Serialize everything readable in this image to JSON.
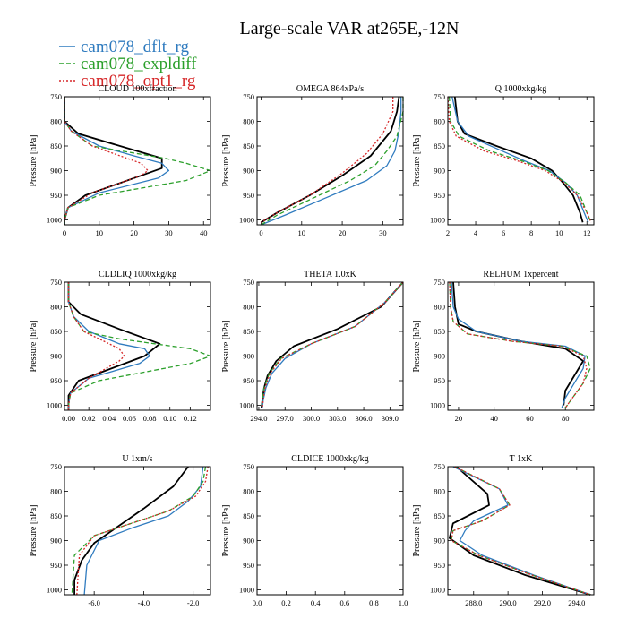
{
  "figure": {
    "title": "Large-scale VAR at265E,-12N",
    "legend": [
      {
        "label": "cam078_dflt_rg",
        "color": "#2f7bbf",
        "dash": "solid"
      },
      {
        "label": "cam078_expldiff",
        "color": "#2ca02c",
        "dash": "dashed"
      },
      {
        "label": "cam078_opt1_rg",
        "color": "#d62728",
        "dash": "dotted"
      }
    ],
    "obs_color": "#000000"
  },
  "chart_data": [
    {
      "type": "line",
      "title": "CLOUD  100xfraction",
      "ylabel": "Pressure [hPa]",
      "xlim": [
        0,
        42
      ],
      "ylim": [
        1010,
        750
      ],
      "xticks": [
        0,
        10,
        20,
        30,
        40
      ],
      "yticks": [
        750,
        800,
        850,
        900,
        950,
        1000
      ],
      "decimals": 0,
      "series": [
        {
          "name": "obs",
          "x": [
            0,
            0,
            4,
            28,
            28,
            6,
            1,
            0,
            0
          ],
          "y": [
            750,
            800,
            825,
            875,
            895,
            950,
            975,
            1000,
            1010
          ]
        },
        {
          "name": "cam078_dflt_rg",
          "x": [
            0,
            0,
            2,
            10,
            20,
            28,
            30,
            27,
            10,
            1,
            0,
            0
          ],
          "y": [
            750,
            800,
            820,
            850,
            870,
            885,
            900,
            915,
            945,
            975,
            1000,
            1010
          ]
        },
        {
          "name": "cam078_expldiff",
          "x": [
            0,
            0,
            2,
            8,
            29,
            35,
            42,
            35,
            10,
            1,
            0,
            0
          ],
          "y": [
            750,
            800,
            820,
            850,
            875,
            885,
            900,
            920,
            950,
            975,
            1000,
            1010
          ]
        },
        {
          "name": "cam078_opt1_rg",
          "x": [
            0,
            0,
            2,
            8,
            16,
            22,
            24,
            22,
            8,
            1,
            0,
            0
          ],
          "y": [
            750,
            800,
            820,
            850,
            870,
            885,
            900,
            910,
            945,
            975,
            1000,
            1010
          ]
        }
      ]
    },
    {
      "type": "line",
      "title": "OMEGA  864xPa/s",
      "ylabel": "Pressure [hPa]",
      "xlim": [
        -1,
        35
      ],
      "ylim": [
        1010,
        750
      ],
      "xticks": [
        0,
        10,
        20,
        30
      ],
      "yticks": [
        750,
        800,
        850,
        900,
        950,
        1000
      ],
      "decimals": 0,
      "series": [
        {
          "name": "obs",
          "x": [
            34,
            33.5,
            32,
            27,
            20,
            12,
            4,
            0
          ],
          "y": [
            750,
            780,
            820,
            870,
            910,
            950,
            985,
            1005
          ]
        },
        {
          "name": "cam078_dflt_rg",
          "x": [
            34.5,
            34.5,
            34,
            33,
            31,
            26,
            16,
            6,
            0
          ],
          "y": [
            750,
            780,
            820,
            860,
            890,
            920,
            955,
            990,
            1010
          ]
        },
        {
          "name": "cam078_expldiff",
          "x": [
            35,
            35,
            33.5,
            31,
            28,
            22,
            13,
            4,
            0
          ],
          "y": [
            750,
            780,
            830,
            860,
            890,
            920,
            955,
            990,
            1010
          ]
        },
        {
          "name": "cam078_opt1_rg",
          "x": [
            32.5,
            32.5,
            30,
            26,
            20,
            12,
            4,
            0
          ],
          "y": [
            750,
            780,
            825,
            865,
            905,
            950,
            985,
            1005
          ]
        }
      ]
    },
    {
      "type": "line",
      "title": "Q  1000xkg/kg",
      "ylabel": "Pressure [hPa]",
      "xlim": [
        2,
        12.5
      ],
      "ylim": [
        1010,
        750
      ],
      "xticks": [
        2,
        4,
        6,
        8,
        10,
        12
      ],
      "yticks": [
        750,
        800,
        850,
        900,
        950,
        1000
      ],
      "decimals": 0,
      "series": [
        {
          "name": "obs",
          "x": [
            2.5,
            2.7,
            3.2,
            5.5,
            8,
            9.5,
            10.3,
            11,
            11.5,
            11.7
          ],
          "y": [
            750,
            800,
            825,
            850,
            875,
            900,
            925,
            950,
            985,
            1005
          ]
        },
        {
          "name": "cam078_dflt_rg",
          "x": [
            2.3,
            2.7,
            3.5,
            5.5,
            7.5,
            9.3,
            10.5,
            11.3,
            11.8,
            12.1
          ],
          "y": [
            750,
            800,
            830,
            855,
            880,
            900,
            925,
            950,
            985,
            1005
          ]
        },
        {
          "name": "cam078_expldiff",
          "x": [
            2.1,
            2.2,
            2.8,
            5,
            7.3,
            9.2,
            10.5,
            11.5,
            12,
            12.3
          ],
          "y": [
            750,
            800,
            830,
            860,
            880,
            900,
            925,
            950,
            985,
            1005
          ]
        },
        {
          "name": "cam078_opt1_rg",
          "x": [
            2,
            2.1,
            2.6,
            4.6,
            7,
            9,
            10.4,
            11.3,
            12,
            12.3
          ],
          "y": [
            750,
            800,
            830,
            860,
            880,
            900,
            925,
            950,
            985,
            1005
          ]
        }
      ]
    },
    {
      "type": "line",
      "title": "CLDLIQ  1000xkg/kg",
      "ylabel": "Pressure [hPa]",
      "xlim": [
        -0.004,
        0.14
      ],
      "ylim": [
        1010,
        750
      ],
      "xticks": [
        0.0,
        0.02,
        0.04,
        0.06,
        0.08,
        0.1,
        0.12
      ],
      "yticks": [
        750,
        800,
        850,
        900,
        950,
        1000
      ],
      "decimals": 2,
      "series": [
        {
          "name": "obs",
          "x": [
            0,
            0,
            0.012,
            0.05,
            0.09,
            0.075,
            0.01,
            0,
            0
          ],
          "y": [
            750,
            790,
            815,
            845,
            875,
            900,
            950,
            980,
            1010
          ]
        },
        {
          "name": "cam078_dflt_rg",
          "x": [
            0,
            0,
            0.005,
            0.02,
            0.05,
            0.075,
            0.08,
            0.07,
            0.02,
            0.002,
            0,
            0
          ],
          "y": [
            750,
            790,
            820,
            850,
            875,
            885,
            900,
            915,
            945,
            975,
            1000,
            1010
          ]
        },
        {
          "name": "cam078_expldiff",
          "x": [
            0,
            0,
            0.005,
            0.015,
            0.05,
            0.12,
            0.14,
            0.12,
            0.03,
            0.002,
            0,
            0
          ],
          "y": [
            750,
            790,
            820,
            850,
            865,
            885,
            900,
            915,
            950,
            975,
            1000,
            1010
          ]
        },
        {
          "name": "cam078_opt1_rg",
          "x": [
            0,
            0,
            0.005,
            0.015,
            0.04,
            0.05,
            0.055,
            0.05,
            0.02,
            0.002,
            0,
            0
          ],
          "y": [
            750,
            790,
            820,
            850,
            875,
            885,
            900,
            910,
            945,
            975,
            1000,
            1010
          ]
        }
      ]
    },
    {
      "type": "line",
      "title": "THETA  1.0xK",
      "ylabel": "Pressure [hPa]",
      "xlim": [
        293.8,
        310.5
      ],
      "ylim": [
        1010,
        750
      ],
      "xticks": [
        294.0,
        297.0,
        300.0,
        303.0,
        306.0,
        309.0
      ],
      "yticks": [
        750,
        800,
        850,
        900,
        950,
        1000
      ],
      "decimals": 1,
      "series": [
        {
          "name": "obs",
          "x": [
            310.5,
            308,
            303,
            298,
            296,
            295,
            294.6,
            294.4,
            294.3
          ],
          "y": [
            750,
            800,
            845,
            880,
            910,
            940,
            965,
            990,
            1005
          ]
        },
        {
          "name": "cam078_dflt_rg",
          "x": [
            310.5,
            308.5,
            305,
            300,
            297,
            295.5,
            294.8,
            294.5,
            294.4
          ],
          "y": [
            750,
            790,
            840,
            875,
            905,
            935,
            965,
            990,
            1005
          ]
        },
        {
          "name": "cam078_expldiff",
          "x": [
            310.5,
            308.5,
            305,
            300,
            296.5,
            295.2,
            294.6,
            294.4,
            294.3
          ],
          "y": [
            750,
            790,
            840,
            875,
            905,
            935,
            965,
            990,
            1005
          ]
        },
        {
          "name": "cam078_opt1_rg",
          "x": [
            310.5,
            308.5,
            305,
            300,
            296.6,
            295.3,
            294.7,
            294.5,
            294.4
          ],
          "y": [
            750,
            790,
            840,
            875,
            905,
            935,
            965,
            990,
            1005
          ]
        }
      ]
    },
    {
      "type": "line",
      "title": "RELHUM  1xpercent",
      "ylabel": "Pressure [hPa]",
      "xlim": [
        14,
        96
      ],
      "ylim": [
        1010,
        750
      ],
      "xticks": [
        20,
        40,
        60,
        80
      ],
      "yticks": [
        750,
        800,
        850,
        900,
        950,
        1000
      ],
      "decimals": 0,
      "series": [
        {
          "name": "obs",
          "x": [
            17,
            18,
            20,
            30,
            55,
            80,
            90,
            85,
            80,
            79
          ],
          "y": [
            750,
            800,
            835,
            850,
            870,
            885,
            910,
            940,
            970,
            1000
          ]
        },
        {
          "name": "cam078_dflt_rg",
          "x": [
            16,
            17,
            20,
            30,
            55,
            80,
            91,
            90,
            85,
            80,
            78
          ],
          "y": [
            750,
            800,
            825,
            850,
            870,
            880,
            900,
            925,
            955,
            985,
            1005
          ]
        },
        {
          "name": "cam078_expldiff",
          "x": [
            15,
            15.5,
            17,
            25,
            50,
            78,
            92,
            94,
            90,
            84,
            80
          ],
          "y": [
            750,
            800,
            830,
            855,
            870,
            880,
            900,
            925,
            955,
            985,
            1005
          ]
        },
        {
          "name": "cam078_opt1_rg",
          "x": [
            15,
            15.5,
            17,
            25,
            50,
            78,
            90,
            92,
            90,
            84,
            80
          ],
          "y": [
            750,
            800,
            830,
            855,
            870,
            880,
            900,
            925,
            955,
            985,
            1005
          ]
        }
      ]
    },
    {
      "type": "line",
      "title": "U  1xm/s",
      "ylabel": "Pressure [hPa]",
      "xlim": [
        -7.2,
        -1.3
      ],
      "ylim": [
        1010,
        750
      ],
      "xticks": [
        -6.0,
        -4.0,
        -2.0
      ],
      "yticks": [
        750,
        800,
        850,
        900,
        950,
        1000
      ],
      "decimals": 1,
      "series": [
        {
          "name": "obs",
          "x": [
            -2.2,
            -2.8,
            -4,
            -5,
            -6,
            -6.5,
            -6.8,
            -6.8
          ],
          "y": [
            750,
            790,
            835,
            870,
            905,
            940,
            980,
            1010
          ]
        },
        {
          "name": "cam078_dflt_rg",
          "x": [
            -1.6,
            -1.7,
            -2.2,
            -3,
            -4.5,
            -5.8,
            -6.3,
            -6.4
          ],
          "y": [
            750,
            790,
            820,
            850,
            875,
            900,
            950,
            1010
          ]
        },
        {
          "name": "cam078_expldiff",
          "x": [
            -1.5,
            -1.6,
            -2,
            -3,
            -4.5,
            -6,
            -6.8,
            -6.9
          ],
          "y": [
            750,
            780,
            810,
            840,
            865,
            890,
            930,
            1010
          ]
        },
        {
          "name": "cam078_opt1_rg",
          "x": [
            -1.4,
            -1.5,
            -1.9,
            -3,
            -4.5,
            -6,
            -6.6,
            -6.7
          ],
          "y": [
            750,
            780,
            810,
            840,
            865,
            890,
            930,
            1010
          ]
        }
      ]
    },
    {
      "type": "line",
      "title": "CLDICE  1000xkg/kg",
      "ylabel": "Pressure [hPa]",
      "xlim": [
        0,
        1
      ],
      "ylim": [
        1010,
        750
      ],
      "xticks": [
        0.0,
        0.2,
        0.4,
        0.6,
        0.8,
        1.0
      ],
      "yticks": [
        750,
        800,
        850,
        900,
        950,
        1000
      ],
      "decimals": 1,
      "series": []
    },
    {
      "type": "line",
      "title": "T  1xK",
      "ylabel": "Pressure [hPa]",
      "xlim": [
        286.5,
        295
      ],
      "ylim": [
        1010,
        750
      ],
      "xticks": [
        288.0,
        290.0,
        292.0,
        294.0
      ],
      "yticks": [
        750,
        800,
        850,
        900,
        950,
        1000
      ],
      "decimals": 1,
      "series": [
        {
          "name": "obs",
          "x": [
            287,
            288.8,
            288.9,
            286.8,
            286.6,
            288,
            291,
            294.8
          ],
          "y": [
            750,
            805,
            828,
            865,
            895,
            930,
            970,
            1010
          ]
        },
        {
          "name": "cam078_dflt_rg",
          "x": [
            286.8,
            289.5,
            290,
            288,
            287.5,
            287.2,
            288.5,
            291.5,
            294.8
          ],
          "y": [
            750,
            795,
            828,
            860,
            880,
            900,
            930,
            970,
            1010
          ]
        },
        {
          "name": "cam078_expldiff",
          "x": [
            286.9,
            289.5,
            290.1,
            288.5,
            286.8,
            286.7,
            288.3,
            291.4,
            294.8
          ],
          "y": [
            750,
            795,
            828,
            860,
            880,
            900,
            930,
            970,
            1010
          ]
        },
        {
          "name": "cam078_opt1_rg",
          "x": [
            286.9,
            289.5,
            290.1,
            288.5,
            286.8,
            286.7,
            288.3,
            291.4,
            294.8
          ],
          "y": [
            750,
            795,
            828,
            860,
            880,
            900,
            930,
            970,
            1010
          ]
        }
      ]
    }
  ]
}
